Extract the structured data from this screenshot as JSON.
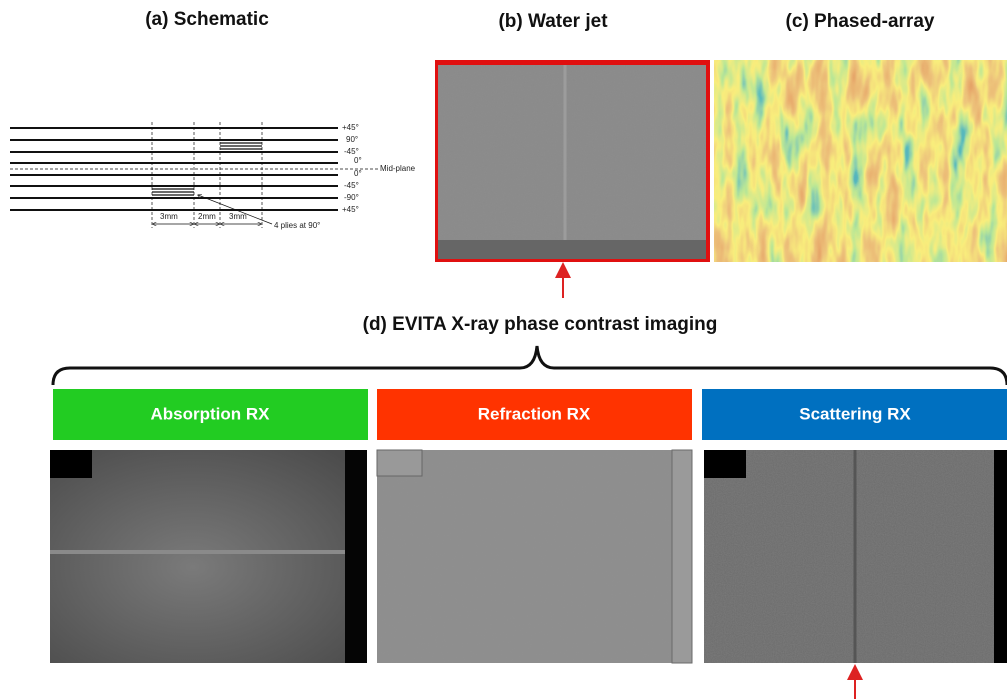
{
  "panels": {
    "a": {
      "title": "(a) Schematic",
      "plies": [
        "+45°",
        "90°",
        "-45°",
        "0°",
        "0°",
        "-45°",
        "-90°",
        "+45°"
      ],
      "midplane": "Mid-plane",
      "dimensions": [
        "3mm",
        "2mm",
        "3mm"
      ],
      "note": "4 plies at 90°"
    },
    "b": {
      "title": "(b) Water jet"
    },
    "c": {
      "title": "(c) Phased-array"
    },
    "d": {
      "title": "(d) EVITA X-ray phase contrast imaging",
      "modes": [
        "Absorption RX",
        "Refraction RX",
        "Scattering RX"
      ]
    }
  }
}
